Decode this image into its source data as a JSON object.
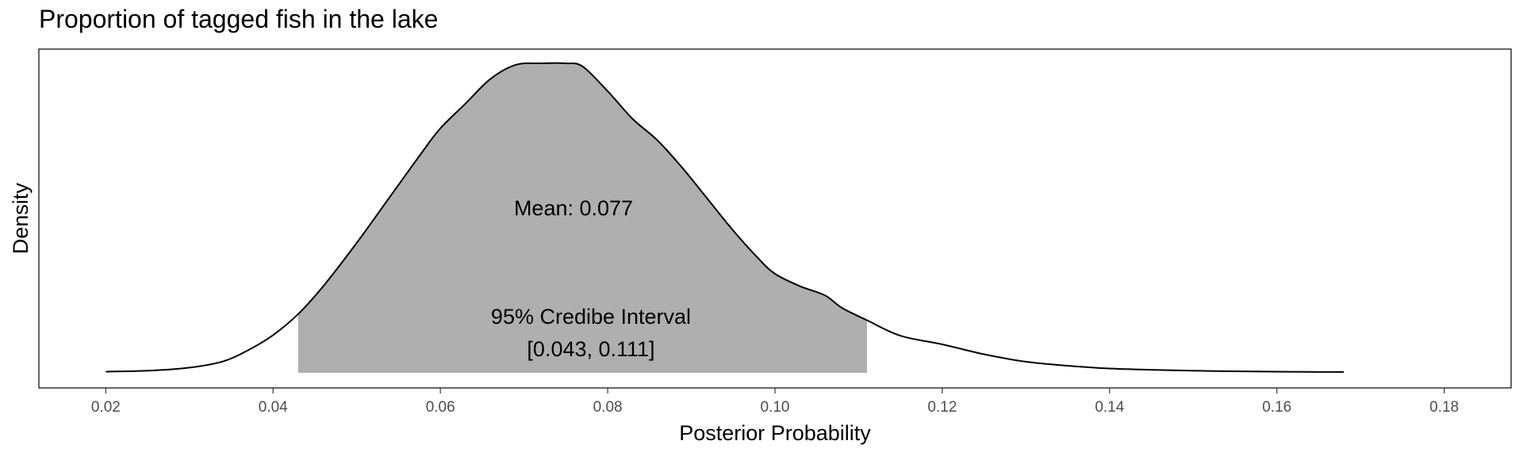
{
  "chart_data": {
    "type": "area",
    "title": "Proportion of tagged fish in the lake",
    "xlabel": "Posterior Probability",
    "ylabel": "Density",
    "xlim": [
      0.012,
      0.188
    ],
    "ylim": [
      0,
      1.0
    ],
    "x_ticks": [
      0.02,
      0.04,
      0.06,
      0.08,
      0.1,
      0.12,
      0.14,
      0.16,
      0.18
    ],
    "x_tick_labels": [
      "0.02",
      "0.04",
      "0.06",
      "0.08",
      "0.10",
      "0.12",
      "0.14",
      "0.16",
      "0.18"
    ],
    "y_ticks_shown": false,
    "grid": false,
    "density": {
      "x": [
        0.02,
        0.025,
        0.03,
        0.034,
        0.037,
        0.04,
        0.043,
        0.046,
        0.05,
        0.054,
        0.058,
        0.06,
        0.063,
        0.066,
        0.069,
        0.072,
        0.075,
        0.077,
        0.08,
        0.083,
        0.086,
        0.089,
        0.092,
        0.095,
        0.098,
        0.1,
        0.103,
        0.106,
        0.108,
        0.111,
        0.115,
        0.12,
        0.125,
        0.13,
        0.135,
        0.14,
        0.145,
        0.15,
        0.155,
        0.16,
        0.165,
        0.168
      ],
      "y": [
        0.004,
        0.007,
        0.017,
        0.037,
        0.073,
        0.122,
        0.19,
        0.28,
        0.42,
        0.57,
        0.72,
        0.79,
        0.87,
        0.95,
        0.995,
        1.0,
        1.0,
        0.99,
        0.91,
        0.82,
        0.75,
        0.66,
        0.56,
        0.46,
        0.37,
        0.32,
        0.28,
        0.25,
        0.21,
        0.17,
        0.12,
        0.092,
        0.06,
        0.036,
        0.023,
        0.014,
        0.01,
        0.007,
        0.005,
        0.004,
        0.003,
        0.003
      ]
    },
    "shaded_interval": [
      0.043,
      0.111
    ],
    "fill_color": "#afafaf",
    "line_color": "#000000",
    "annotations": {
      "mean": "Mean: 0.077",
      "interval_title": "95% Credibe Interval",
      "interval_range": "[0.043, 0.111]"
    }
  }
}
